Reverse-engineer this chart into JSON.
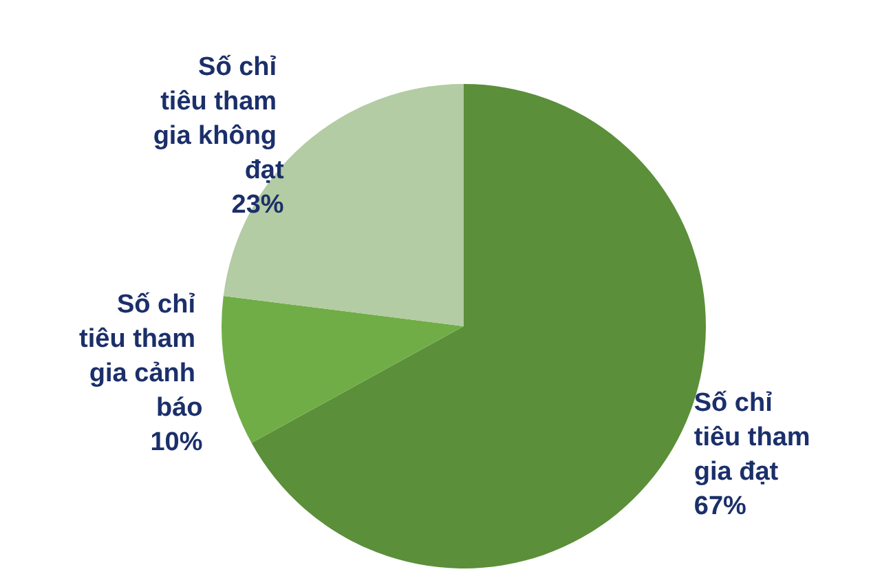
{
  "chart_data": {
    "type": "pie",
    "categories": [
      "Số chỉ tiêu tham gia đạt",
      "Số chỉ tiêu tham gia cảnh báo",
      "Số chỉ tiêu tham gia không đạt"
    ],
    "values": [
      67,
      10,
      23
    ],
    "colors": [
      "#5b8f3a",
      "#70ad47",
      "#b3cca3"
    ],
    "value_labels": [
      "67%",
      "10%",
      "23%"
    ],
    "legend": false
  }
}
